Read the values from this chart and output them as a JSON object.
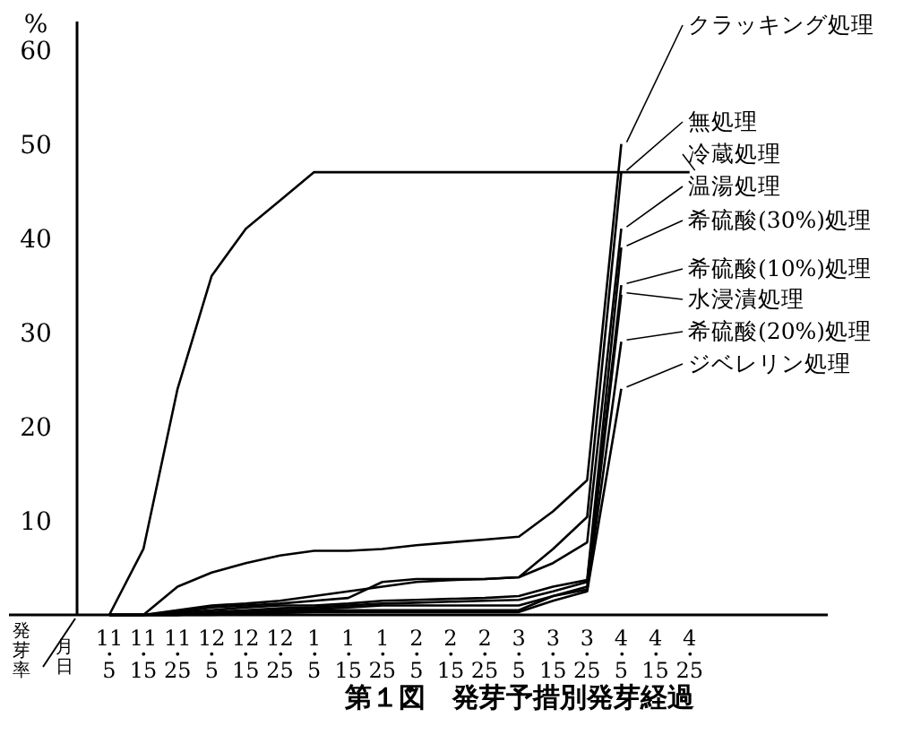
{
  "chart_data": {
    "type": "line",
    "title": "第１図　発芽予措別発芽経過",
    "ylabel": "%",
    "xlabel": "月日",
    "annotations": [
      "発芽率"
    ],
    "categories": [
      "11・5",
      "11・15",
      "11・25",
      "12・5",
      "12・15",
      "12・25",
      "1・5",
      "1・15",
      "1・25",
      "2・5",
      "2・15",
      "2・25",
      "3・5",
      "3・15",
      "3・25",
      "4・5",
      "4・15",
      "4・25"
    ],
    "ylim": [
      0,
      63
    ],
    "yticks": [
      10,
      20,
      30,
      40,
      50,
      60
    ],
    "grid": false,
    "legend": "right",
    "line_style": "solid",
    "series": [
      {
        "name": "クラッキング処理",
        "color": "#000000",
        "values": [
          0,
          0,
          3,
          4.5,
          5.5,
          6.3,
          6.8,
          6.8,
          7,
          7.4,
          7.7,
          8,
          8.3,
          11,
          14.3,
          50,
          null,
          null
        ]
      },
      {
        "name": "無処理",
        "color": "#000000",
        "values": [
          0,
          0,
          0.5,
          1,
          1.2,
          1.5,
          2,
          2.5,
          3,
          3.5,
          3.7,
          3.8,
          4,
          7,
          10.4,
          47,
          null,
          null
        ]
      },
      {
        "name": "冷蔵処理",
        "color": "#000000",
        "values": [
          0,
          7,
          24,
          36,
          41,
          44,
          47,
          47,
          47,
          47,
          47,
          47,
          47,
          47,
          47,
          47,
          47,
          47
        ]
      },
      {
        "name": "温湯処理",
        "color": "#000000",
        "values": [
          0,
          0,
          0.3,
          0.8,
          1,
          1.2,
          1.5,
          1.8,
          3.5,
          3.8,
          3.8,
          3.8,
          4,
          5.5,
          7.7,
          41,
          null,
          null
        ]
      },
      {
        "name": "希硫酸(30%)処理",
        "color": "#000000",
        "values": [
          0,
          0,
          0.2,
          0.5,
          0.8,
          1,
          1,
          1.2,
          1.5,
          1.6,
          1.7,
          1.8,
          2,
          3,
          3.7,
          39,
          null,
          null
        ]
      },
      {
        "name": "希硫酸(10%)処理",
        "color": "#000000",
        "values": [
          0,
          0,
          0,
          0.3,
          0.5,
          0.7,
          0.8,
          1,
          1.2,
          1.3,
          1.4,
          1.5,
          1.6,
          2.5,
          3.5,
          35,
          null,
          null
        ]
      },
      {
        "name": "水浸漬処理",
        "color": "#000000",
        "values": [
          0,
          0,
          0,
          0.2,
          0.3,
          0.5,
          0.6,
          0.8,
          1,
          1,
          1,
          1,
          1,
          2,
          3,
          34,
          null,
          null
        ]
      },
      {
        "name": "希硫酸(20%)処理",
        "color": "#000000",
        "values": [
          0,
          0,
          0,
          0.1,
          0.2,
          0.3,
          0.5,
          0.5,
          0.5,
          0.5,
          0.5,
          0.5,
          0.5,
          2,
          2.7,
          29,
          null,
          null
        ]
      },
      {
        "name": "ジベレリン処理",
        "color": "#000000",
        "values": [
          0,
          0,
          0,
          0,
          0.1,
          0.2,
          0.3,
          0.3,
          0.3,
          0.3,
          0.3,
          0.3,
          0.3,
          1.5,
          2.5,
          24,
          null,
          null
        ]
      }
    ]
  }
}
